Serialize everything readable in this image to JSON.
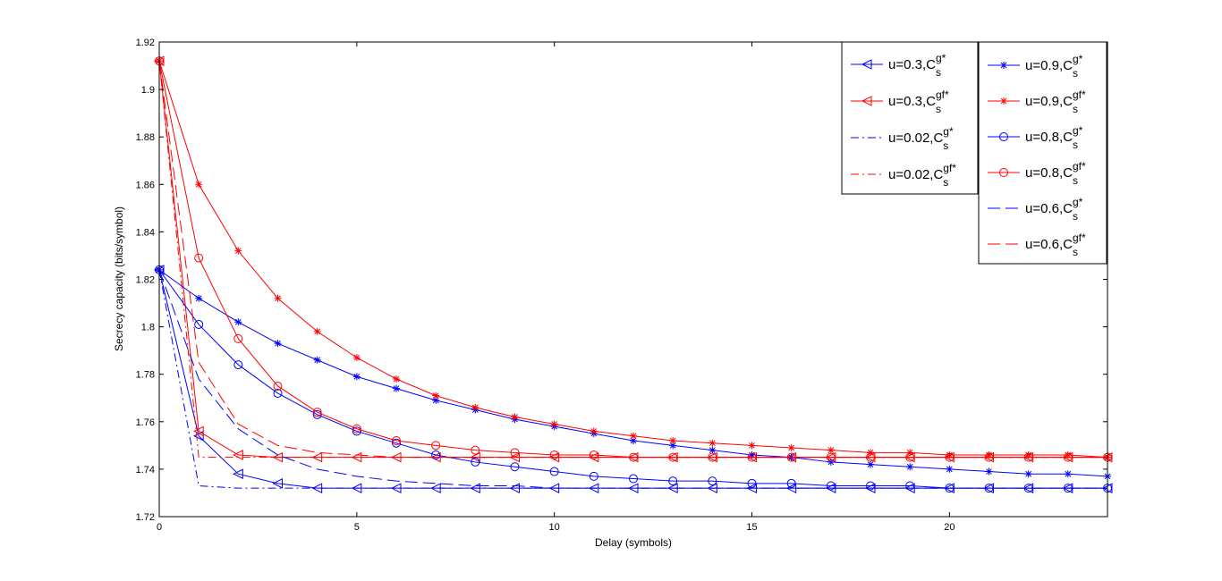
{
  "chart_data": {
    "type": "line",
    "title": "",
    "xlabel": "Delay (symbols)",
    "ylabel": "Secrecy capacity (bits/symbol)",
    "xlim": [
      0,
      24
    ],
    "ylim": [
      1.72,
      1.92
    ],
    "xticks": [
      0,
      5,
      10,
      15,
      20
    ],
    "yticks": [
      1.72,
      1.74,
      1.76,
      1.78,
      1.8,
      1.82,
      1.84,
      1.86,
      1.88,
      1.9,
      1.92
    ],
    "ytick_labels": [
      "1.72",
      "1.74",
      "1.76",
      "1.78",
      "1.8",
      "1.82",
      "1.84",
      "1.86",
      "1.88",
      "1.9",
      "1.92"
    ],
    "grid": false,
    "x": [
      0,
      1,
      2,
      3,
      4,
      5,
      6,
      7,
      8,
      9,
      10,
      11,
      12,
      13,
      14,
      15,
      16,
      17,
      18,
      19,
      20,
      21,
      22,
      23,
      24
    ],
    "legend_columns": [
      [
        "s_03_g",
        "s_03_gf",
        "s_002_g",
        "s_002_gf"
      ],
      [
        "s_09_g",
        "s_09_gf",
        "s_08_g",
        "s_08_gf",
        "s_06_g",
        "s_06_gf"
      ]
    ],
    "series": [
      {
        "id": "s_03_g",
        "label_main": "u=0.3,C",
        "label_sup": "g*",
        "label_sub": "s",
        "color": "#0000ff",
        "style": "solid",
        "marker": "triangle-left",
        "values": [
          1.824,
          1.754,
          1.738,
          1.734,
          1.732,
          1.732,
          1.732,
          1.732,
          1.732,
          1.732,
          1.732,
          1.732,
          1.732,
          1.732,
          1.732,
          1.732,
          1.732,
          1.732,
          1.732,
          1.732,
          1.732,
          1.732,
          1.732,
          1.732,
          1.732
        ]
      },
      {
        "id": "s_03_gf",
        "label_main": "u=0.3,C",
        "label_sup": "gf*",
        "label_sub": "s",
        "color": "#ff0000",
        "style": "solid",
        "marker": "triangle-left",
        "values": [
          1.912,
          1.756,
          1.746,
          1.745,
          1.745,
          1.745,
          1.745,
          1.745,
          1.745,
          1.745,
          1.745,
          1.745,
          1.745,
          1.745,
          1.745,
          1.745,
          1.745,
          1.745,
          1.745,
          1.745,
          1.745,
          1.745,
          1.745,
          1.745,
          1.745
        ]
      },
      {
        "id": "s_002_g",
        "label_main": "u=0.02,C",
        "label_sup": "g*",
        "label_sub": "s",
        "color": "#0000ff",
        "style": "dashdot",
        "marker": "none",
        "values": [
          1.824,
          1.733,
          1.732,
          1.732,
          1.732,
          1.732,
          1.732,
          1.732,
          1.732,
          1.732,
          1.732,
          1.732,
          1.732,
          1.732,
          1.732,
          1.732,
          1.732,
          1.732,
          1.732,
          1.732,
          1.732,
          1.732,
          1.732,
          1.732,
          1.732
        ]
      },
      {
        "id": "s_002_gf",
        "label_main": "u=0.02,C",
        "label_sup": "gf*",
        "label_sub": "s",
        "color": "#ff0000",
        "style": "dashdot",
        "marker": "none",
        "values": [
          1.912,
          1.745,
          1.745,
          1.745,
          1.745,
          1.745,
          1.745,
          1.745,
          1.745,
          1.745,
          1.745,
          1.745,
          1.745,
          1.745,
          1.745,
          1.745,
          1.745,
          1.745,
          1.745,
          1.745,
          1.745,
          1.745,
          1.745,
          1.745,
          1.745
        ]
      },
      {
        "id": "s_09_g",
        "label_main": "u=0.9,C",
        "label_sup": "g*",
        "label_sub": "s",
        "color": "#0000ff",
        "style": "solid",
        "marker": "star",
        "values": [
          1.824,
          1.812,
          1.802,
          1.793,
          1.786,
          1.779,
          1.774,
          1.769,
          1.765,
          1.761,
          1.758,
          1.755,
          1.752,
          1.75,
          1.748,
          1.746,
          1.745,
          1.743,
          1.742,
          1.741,
          1.74,
          1.739,
          1.738,
          1.738,
          1.737
        ]
      },
      {
        "id": "s_09_gf",
        "label_main": "u=0.9,C",
        "label_sup": "gf*",
        "label_sub": "s",
        "color": "#ff0000",
        "style": "solid",
        "marker": "star",
        "values": [
          1.912,
          1.86,
          1.832,
          1.812,
          1.798,
          1.787,
          1.778,
          1.771,
          1.766,
          1.762,
          1.759,
          1.756,
          1.754,
          1.752,
          1.751,
          1.75,
          1.749,
          1.748,
          1.747,
          1.747,
          1.746,
          1.746,
          1.746,
          1.746,
          1.745
        ]
      },
      {
        "id": "s_08_g",
        "label_main": "u=0.8,C",
        "label_sup": "g*",
        "label_sub": "s",
        "color": "#0000ff",
        "style": "solid",
        "marker": "circle",
        "values": [
          1.824,
          1.801,
          1.784,
          1.772,
          1.763,
          1.756,
          1.751,
          1.746,
          1.743,
          1.741,
          1.739,
          1.737,
          1.736,
          1.735,
          1.735,
          1.734,
          1.734,
          1.733,
          1.733,
          1.733,
          1.732,
          1.732,
          1.732,
          1.732,
          1.732
        ]
      },
      {
        "id": "s_08_gf",
        "label_main": "u=0.8,C",
        "label_sup": "gf*",
        "label_sub": "s",
        "color": "#ff0000",
        "style": "solid",
        "marker": "circle",
        "values": [
          1.912,
          1.829,
          1.795,
          1.775,
          1.764,
          1.757,
          1.752,
          1.75,
          1.748,
          1.747,
          1.746,
          1.746,
          1.745,
          1.745,
          1.745,
          1.745,
          1.745,
          1.745,
          1.745,
          1.745,
          1.745,
          1.745,
          1.745,
          1.745,
          1.745
        ]
      },
      {
        "id": "s_06_g",
        "label_main": "u=0.6,C",
        "label_sup": "g*",
        "label_sub": "s",
        "color": "#0000ff",
        "style": "dashed",
        "marker": "none",
        "values": [
          1.824,
          1.778,
          1.757,
          1.746,
          1.74,
          1.737,
          1.735,
          1.734,
          1.733,
          1.733,
          1.732,
          1.732,
          1.732,
          1.732,
          1.732,
          1.732,
          1.732,
          1.732,
          1.732,
          1.732,
          1.732,
          1.732,
          1.732,
          1.732,
          1.732
        ]
      },
      {
        "id": "s_06_gf",
        "label_main": "u=0.6,C",
        "label_sup": "gf*",
        "label_sub": "s",
        "color": "#ff0000",
        "style": "dashed",
        "marker": "none",
        "values": [
          1.912,
          1.785,
          1.759,
          1.75,
          1.747,
          1.746,
          1.745,
          1.745,
          1.745,
          1.745,
          1.745,
          1.745,
          1.745,
          1.745,
          1.745,
          1.745,
          1.745,
          1.745,
          1.745,
          1.745,
          1.745,
          1.745,
          1.745,
          1.745,
          1.745
        ]
      }
    ]
  }
}
